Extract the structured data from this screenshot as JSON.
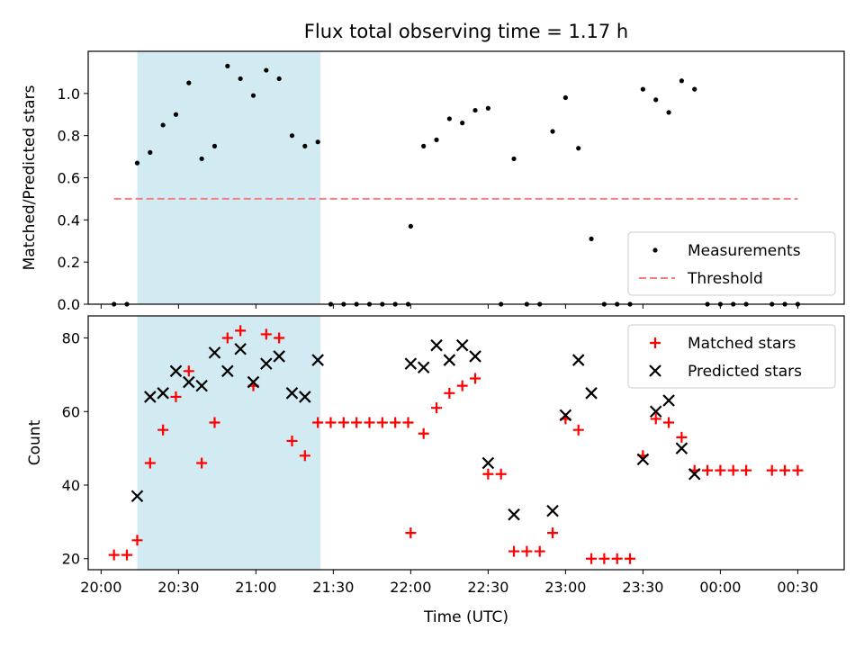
{
  "chart_data": {
    "type": "scatter",
    "title": "Flux total observing time = 1.17 h",
    "xlabel": "Time (UTC)",
    "x_ticks": [
      "20:00",
      "20:30",
      "21:00",
      "21:30",
      "22:00",
      "22:30",
      "23:00",
      "23:30",
      "00:00",
      "00:30"
    ],
    "highlight_span": {
      "start": "20:14",
      "end": "21:25",
      "color": "#add8e6"
    },
    "panels": [
      {
        "id": "ratio",
        "ylabel": "Matched/Predicted stars",
        "ylim": [
          0,
          1.2
        ],
        "y_ticks": [
          "0.0",
          "0.2",
          "0.4",
          "0.6",
          "0.8",
          "1.0"
        ],
        "legend_position": "bottom-right",
        "series": [
          {
            "name": "Measurements",
            "marker": "dot",
            "color": "#000000",
            "x": [
              "20:05",
              "20:10",
              "20:14",
              "20:19",
              "20:24",
              "20:29",
              "20:34",
              "20:39",
              "20:44",
              "20:49",
              "20:54",
              "20:59",
              "21:04",
              "21:09",
              "21:14",
              "21:19",
              "21:24",
              "21:29",
              "21:34",
              "21:39",
              "21:44",
              "21:49",
              "21:54",
              "21:59",
              "22:00",
              "22:05",
              "22:10",
              "22:15",
              "22:20",
              "22:25",
              "22:30",
              "22:35",
              "22:40",
              "22:45",
              "22:50",
              "22:55",
              "23:00",
              "23:05",
              "23:10",
              "23:15",
              "23:20",
              "23:25",
              "23:30",
              "23:35",
              "23:40",
              "23:45",
              "23:50",
              "23:55",
              "00:00",
              "00:05",
              "00:10",
              "00:20",
              "00:25",
              "00:30"
            ],
            "y": [
              0.0,
              0.0,
              0.67,
              0.72,
              0.85,
              0.9,
              1.05,
              0.69,
              0.75,
              1.13,
              1.07,
              0.99,
              1.11,
              1.07,
              0.8,
              0.75,
              0.77,
              0.0,
              0.0,
              0.0,
              0.0,
              0.0,
              0.0,
              0.0,
              0.37,
              0.75,
              0.78,
              0.88,
              0.86,
              0.92,
              0.93,
              0.0,
              0.69,
              0.0,
              0.0,
              0.82,
              0.98,
              0.74,
              0.31,
              0.0,
              0.0,
              0.0,
              1.02,
              0.97,
              0.91,
              1.06,
              1.02,
              0.0,
              0.0,
              0.0,
              0.0,
              0.0,
              0.0,
              0.0
            ]
          },
          {
            "name": "Threshold",
            "marker": "dashed-line",
            "color": "#f08080",
            "x": [
              "20:05",
              "00:30"
            ],
            "y": [
              0.5,
              0.5
            ]
          }
        ]
      },
      {
        "id": "count",
        "ylabel": "Count",
        "ylim": [
          17,
          86
        ],
        "y_ticks": [
          "20",
          "40",
          "60",
          "80"
        ],
        "legend_position": "top-right",
        "series": [
          {
            "name": "Matched stars",
            "marker": "plus",
            "color": "#ff0000",
            "x": [
              "20:05",
              "20:10",
              "20:14",
              "20:19",
              "20:24",
              "20:29",
              "20:34",
              "20:39",
              "20:44",
              "20:49",
              "20:54",
              "20:59",
              "21:04",
              "21:09",
              "21:14",
              "21:19",
              "21:24",
              "21:29",
              "21:34",
              "21:39",
              "21:44",
              "21:49",
              "21:54",
              "21:59",
              "22:00",
              "22:05",
              "22:10",
              "22:15",
              "22:20",
              "22:25",
              "22:30",
              "22:35",
              "22:40",
              "22:45",
              "22:50",
              "22:55",
              "23:00",
              "23:05",
              "23:10",
              "23:15",
              "23:20",
              "23:25",
              "23:30",
              "23:35",
              "23:40",
              "23:45",
              "23:50",
              "23:55",
              "00:00",
              "00:05",
              "00:10",
              "00:20",
              "00:25",
              "00:30"
            ],
            "y": [
              21,
              21,
              25,
              46,
              55,
              64,
              71,
              46,
              57,
              80,
              82,
              67,
              81,
              80,
              52,
              48,
              57,
              57,
              57,
              57,
              57,
              57,
              57,
              57,
              27,
              54,
              61,
              65,
              67,
              69,
              43,
              43,
              22,
              22,
              22,
              27,
              58,
              55,
              20,
              20,
              20,
              20,
              48,
              58,
              57,
              53,
              44,
              44,
              44,
              44,
              44,
              44,
              44,
              44
            ]
          },
          {
            "name": "Predicted stars",
            "marker": "x",
            "color": "#000000",
            "x": [
              "20:14",
              "20:19",
              "20:24",
              "20:29",
              "20:34",
              "20:39",
              "20:44",
              "20:49",
              "20:54",
              "20:59",
              "21:04",
              "21:09",
              "21:14",
              "21:19",
              "21:24",
              "22:00",
              "22:05",
              "22:10",
              "22:15",
              "22:20",
              "22:25",
              "22:30",
              "22:40",
              "22:55",
              "23:00",
              "23:05",
              "23:10",
              "23:30",
              "23:35",
              "23:40",
              "23:45",
              "23:50"
            ],
            "y": [
              37,
              64,
              65,
              71,
              68,
              67,
              76,
              71,
              77,
              68,
              73,
              75,
              65,
              64,
              74,
              73,
              72,
              78,
              74,
              78,
              75,
              46,
              32,
              33,
              59,
              74,
              65,
              47,
              60,
              63,
              50,
              43
            ]
          }
        ]
      }
    ]
  }
}
